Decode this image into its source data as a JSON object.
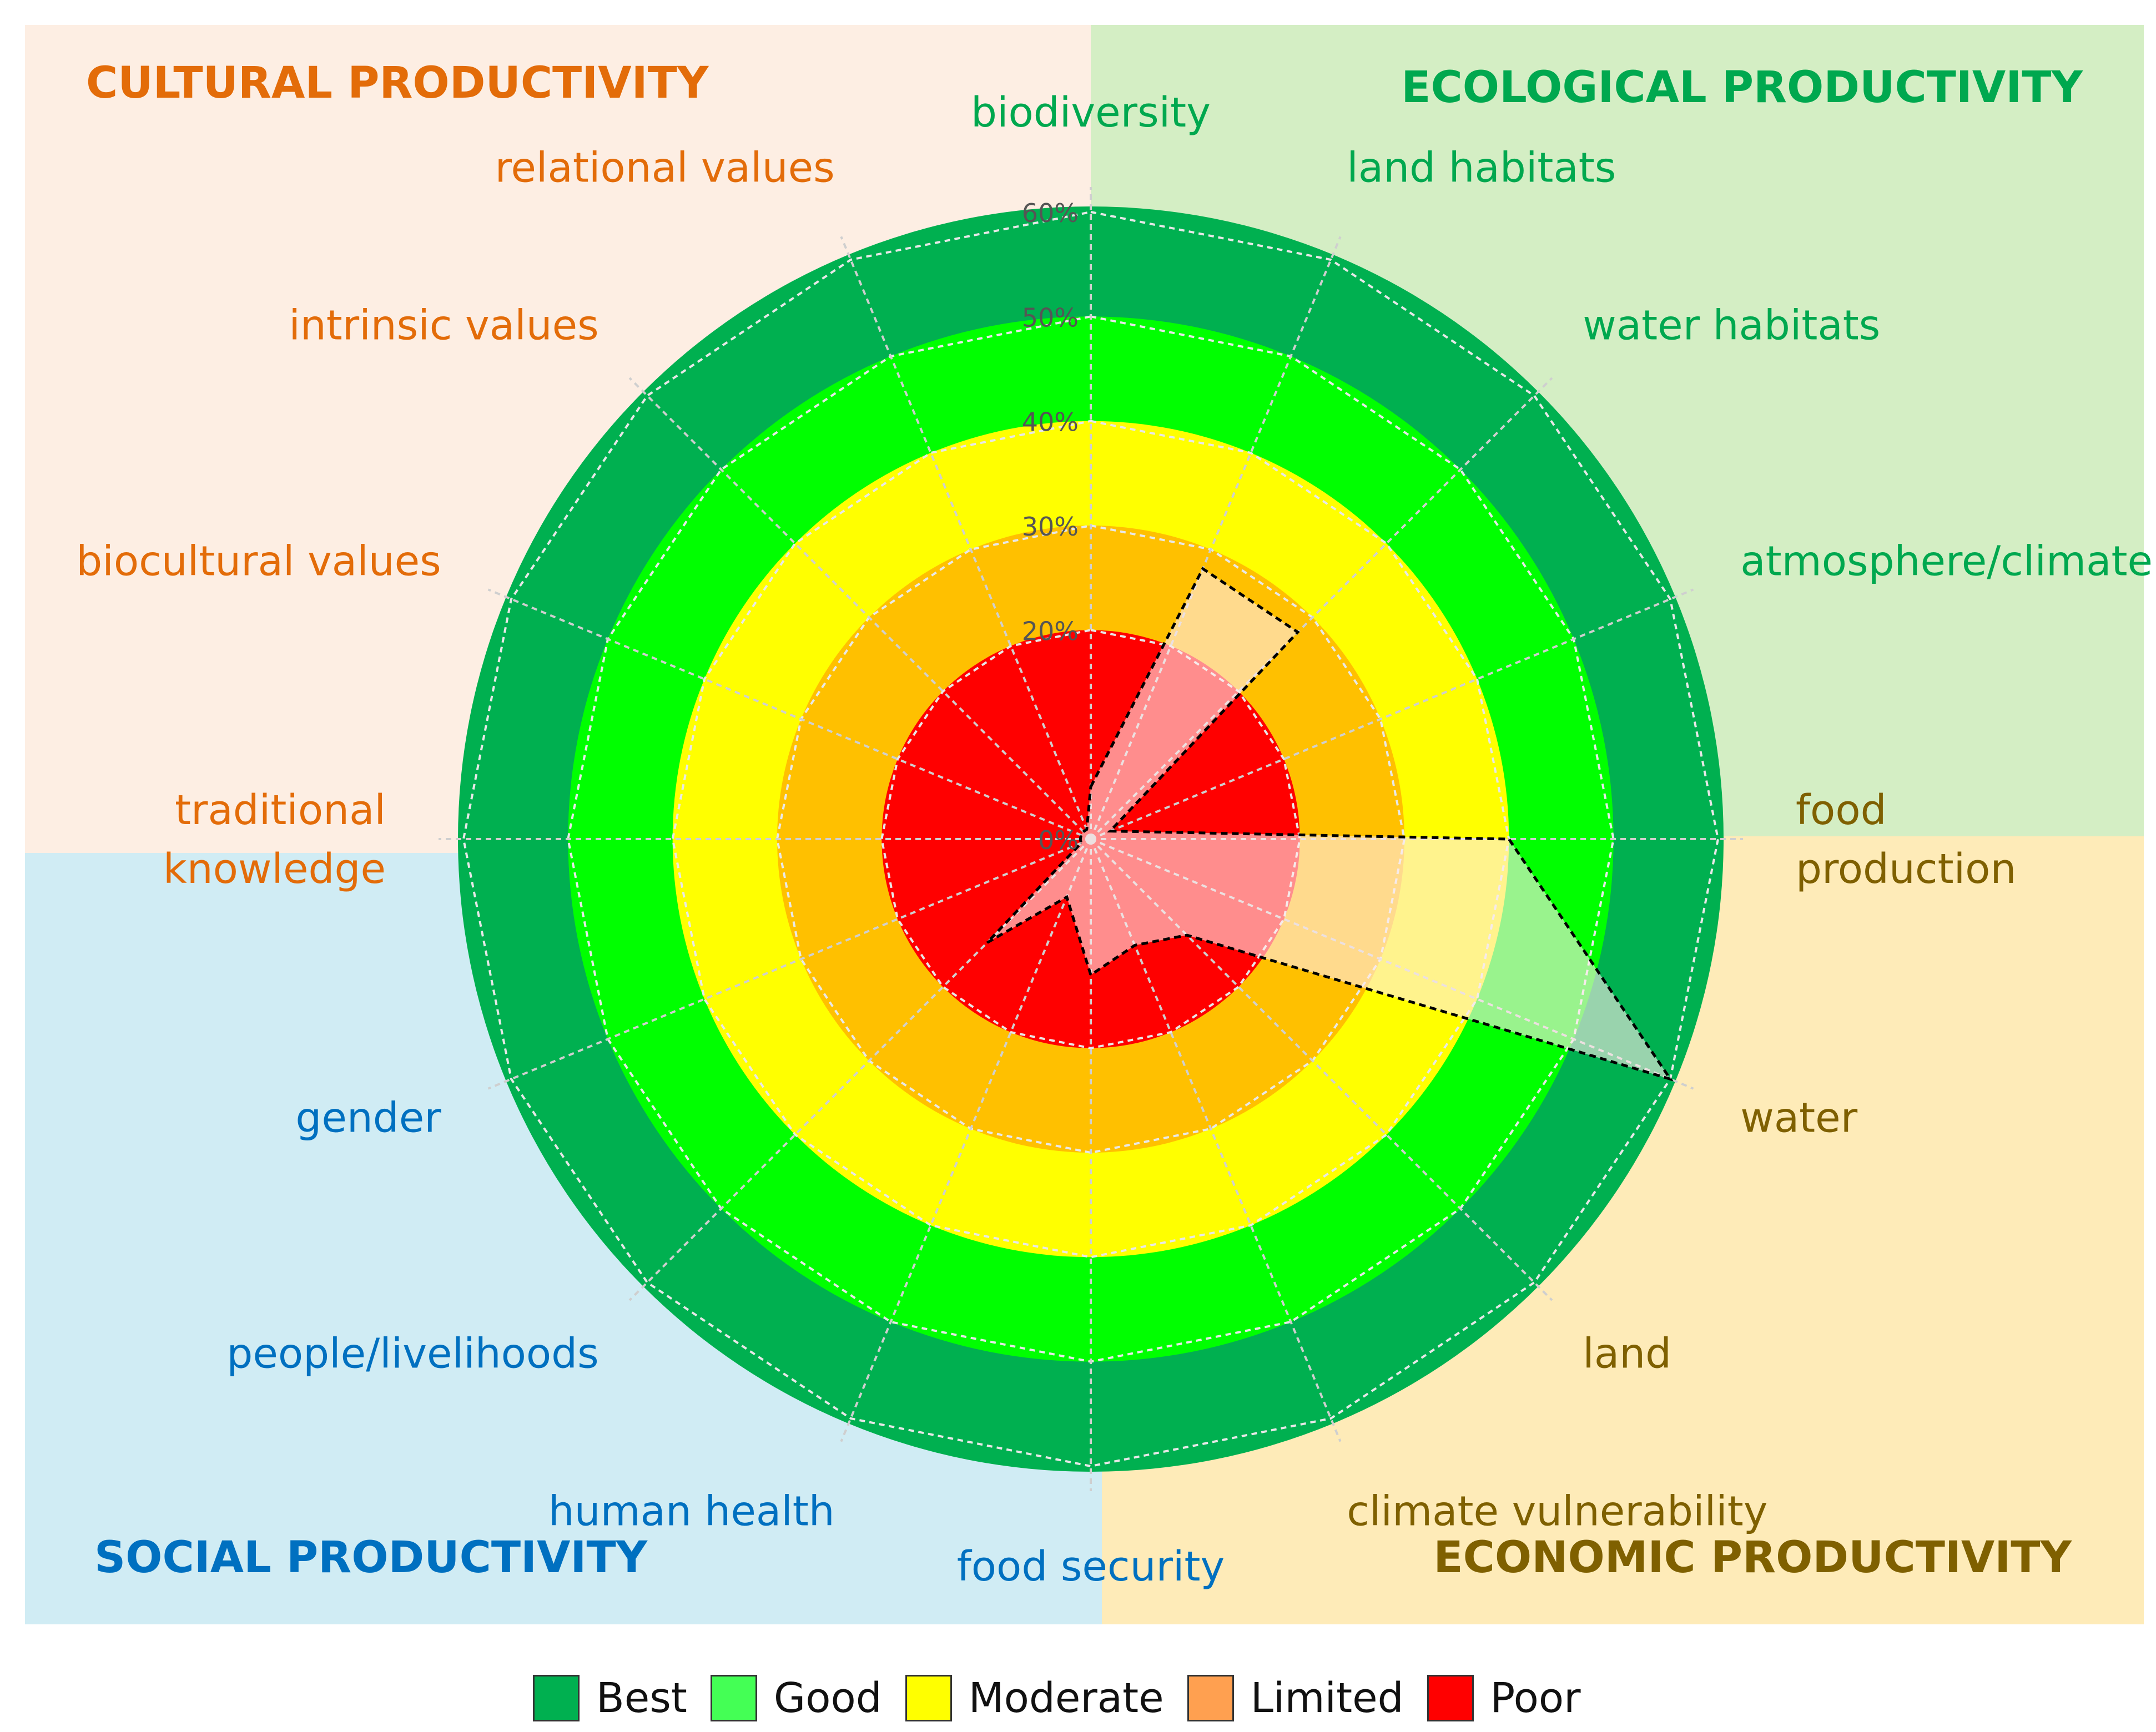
{
  "quadrants": {
    "cultural": {
      "title": "CULTURAL PRODUCTIVITY",
      "bg": "#FDEEE3",
      "color": "#E36C09"
    },
    "ecological": {
      "title": "ECOLOGICAL PRODUCTIVITY",
      "bg": "#D4EEC4",
      "color": "#00A84F"
    },
    "social": {
      "title": "SOCIAL PRODUCTIVITY",
      "bg": "#D0ECF4",
      "color": "#0070C0"
    },
    "economic": {
      "title": "ECONOMIC PRODUCTIVITY",
      "bg": "#FEEBB8",
      "color": "#7F6000"
    }
  },
  "chart_data": {
    "type": "radar",
    "rlim": [
      0,
      60
    ],
    "ticks": [
      "0%",
      "20%",
      "30%",
      "40%",
      "50%",
      "60%"
    ],
    "tick_values": [
      0,
      20,
      30,
      40,
      50,
      60
    ],
    "bands": [
      {
        "name": "Best",
        "from": 50,
        "to": 60,
        "color": "#00B050"
      },
      {
        "name": "Good",
        "from": 40,
        "to": 50,
        "color": "#00FF00"
      },
      {
        "name": "Moderate",
        "from": 30,
        "to": 40,
        "color": "#FFFF00"
      },
      {
        "name": "Limited",
        "from": 20,
        "to": 30,
        "color": "#FFC000"
      },
      {
        "name": "Poor",
        "from": 0,
        "to": 20,
        "color": "#FF0000"
      }
    ],
    "series_fill": "rgba(255,235,235,0.6)",
    "axes": [
      {
        "label": "biodiversity",
        "value": 5,
        "group": "ecological"
      },
      {
        "label": "land habitats",
        "value": 28,
        "group": "ecological"
      },
      {
        "label": "water habitats",
        "value": 28,
        "group": "ecological"
      },
      {
        "label": "atmosphere/climate",
        "value": 2,
        "group": "ecological"
      },
      {
        "label": "food production",
        "value": 40,
        "group": "economic"
      },
      {
        "label": "water",
        "value": 60,
        "group": "economic"
      },
      {
        "label": "land",
        "value": 13,
        "group": "economic"
      },
      {
        "label": "climate vulnerability",
        "value": 11,
        "group": "economic"
      },
      {
        "label": "food security",
        "value": 13,
        "group": "social"
      },
      {
        "label": "human health",
        "value": 6,
        "group": "social"
      },
      {
        "label": "people/livelihoods",
        "value": 14,
        "group": "social"
      },
      {
        "label": "gender",
        "value": 1,
        "group": "social"
      },
      {
        "label": "traditional knowledge",
        "value": 1,
        "group": "cultural"
      },
      {
        "label": "biocultural values",
        "value": 1,
        "group": "cultural"
      },
      {
        "label": "intrinsic values",
        "value": 1,
        "group": "cultural"
      },
      {
        "label": "relational values",
        "value": 1,
        "group": "cultural"
      }
    ]
  },
  "legend": [
    {
      "label": "Best",
      "color": "#00B050"
    },
    {
      "label": "Good",
      "color": "#44FF55"
    },
    {
      "label": "Moderate",
      "color": "#FFFF00"
    },
    {
      "label": "Limited",
      "color": "#FFA050"
    },
    {
      "label": "Poor",
      "color": "#FF0000"
    }
  ]
}
